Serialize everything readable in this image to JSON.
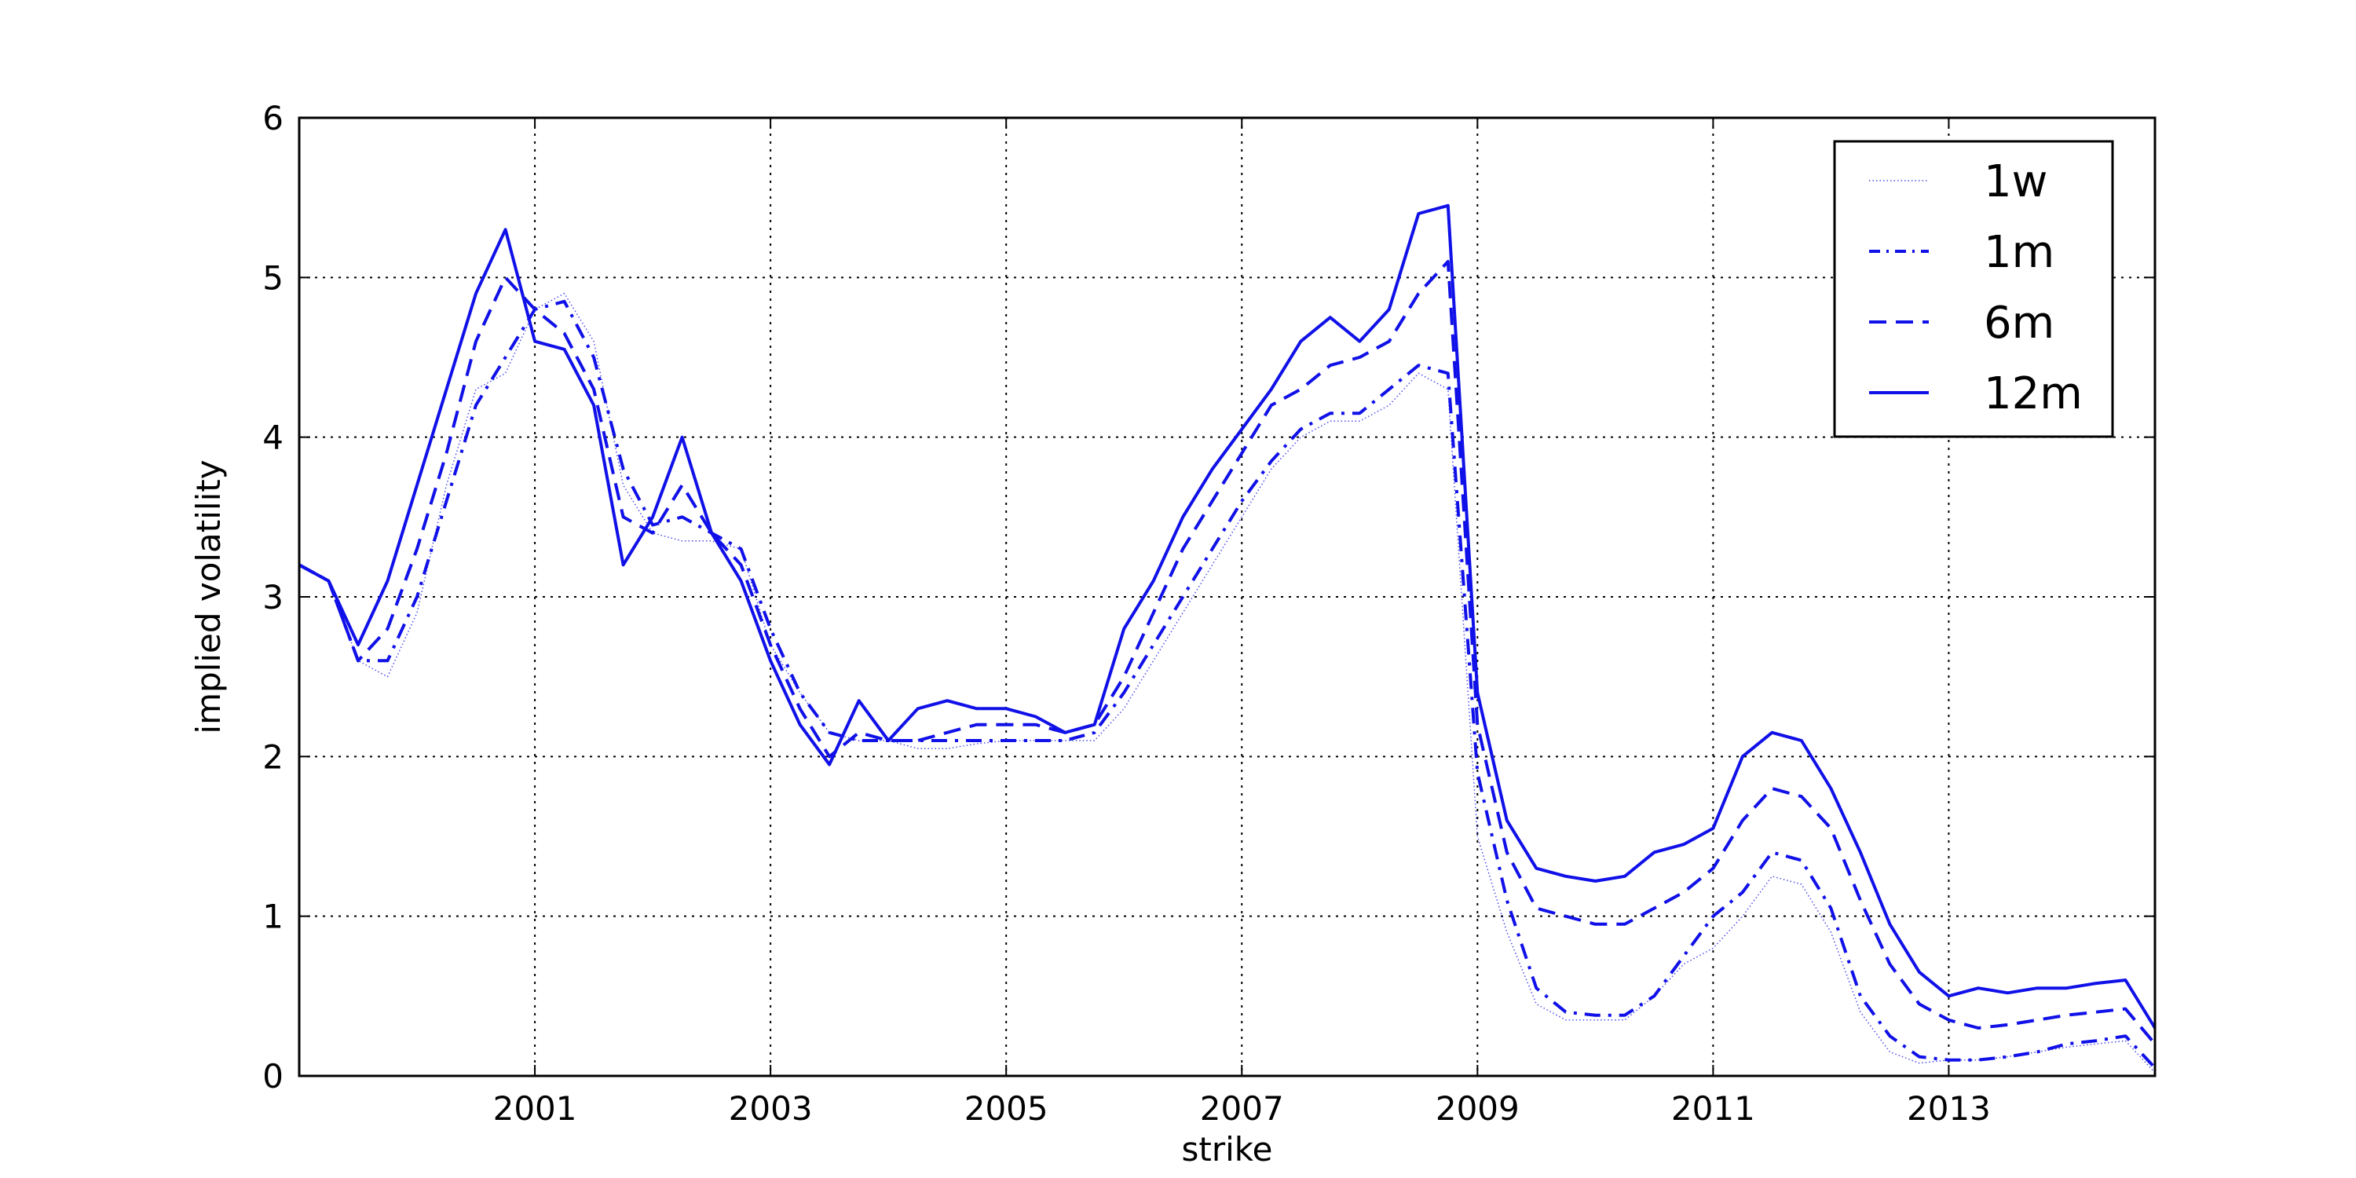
{
  "chart_data": {
    "type": "line",
    "title": "",
    "xlabel": "strike",
    "ylabel": "implied volatility",
    "xlim": [
      1999.0,
      2014.75
    ],
    "ylim": [
      0,
      6
    ],
    "x_ticks": [
      2001,
      2003,
      2005,
      2007,
      2009,
      2011,
      2013
    ],
    "x_tick_labels": [
      "2001",
      "2003",
      "2005",
      "2007",
      "2009",
      "2011",
      "2013"
    ],
    "y_ticks": [
      0,
      1,
      2,
      3,
      4,
      5,
      6
    ],
    "y_tick_labels": [
      "0",
      "1",
      "2",
      "3",
      "4",
      "5",
      "6"
    ],
    "grid": true,
    "legend_position": "top-right",
    "color": "#1010e8",
    "x": [
      1999.0,
      1999.25,
      1999.5,
      1999.75,
      2000.0,
      2000.25,
      2000.5,
      2000.75,
      2001.0,
      2001.25,
      2001.5,
      2001.75,
      2002.0,
      2002.25,
      2002.5,
      2002.75,
      2003.0,
      2003.25,
      2003.5,
      2003.75,
      2004.0,
      2004.25,
      2004.5,
      2004.75,
      2005.0,
      2005.25,
      2005.5,
      2005.75,
      2006.0,
      2006.25,
      2006.5,
      2006.75,
      2007.0,
      2007.25,
      2007.5,
      2007.75,
      2008.0,
      2008.25,
      2008.5,
      2008.75,
      2009.0,
      2009.25,
      2009.5,
      2009.75,
      2010.0,
      2010.25,
      2010.5,
      2010.75,
      2011.0,
      2011.25,
      2011.5,
      2011.75,
      2012.0,
      2012.25,
      2012.5,
      2012.75,
      2013.0,
      2013.25,
      2013.5,
      2013.75,
      2014.0,
      2014.25,
      2014.5,
      2014.75
    ],
    "series": [
      {
        "name": "1w",
        "style": "dotted",
        "values": [
          3.2,
          3.1,
          2.6,
          2.5,
          2.9,
          3.7,
          4.3,
          4.4,
          4.8,
          4.9,
          4.6,
          3.7,
          3.4,
          3.35,
          3.35,
          3.3,
          2.7,
          2.4,
          2.15,
          2.1,
          2.1,
          2.05,
          2.05,
          2.08,
          2.1,
          2.1,
          2.1,
          2.1,
          2.3,
          2.6,
          2.9,
          3.2,
          3.5,
          3.8,
          4.0,
          4.1,
          4.1,
          4.2,
          4.4,
          4.3,
          1.5,
          0.9,
          0.45,
          0.35,
          0.35,
          0.35,
          0.5,
          0.7,
          0.8,
          1.0,
          1.25,
          1.2,
          0.9,
          0.4,
          0.15,
          0.08,
          0.1,
          0.1,
          0.12,
          0.15,
          0.18,
          0.2,
          0.22,
          0.02
        ]
      },
      {
        "name": "1m",
        "style": "dashdot",
        "values": [
          3.2,
          3.1,
          2.6,
          2.6,
          3.0,
          3.6,
          4.2,
          4.5,
          4.8,
          4.85,
          4.5,
          3.8,
          3.45,
          3.5,
          3.4,
          3.3,
          2.8,
          2.4,
          2.15,
          2.1,
          2.1,
          2.1,
          2.1,
          2.1,
          2.1,
          2.1,
          2.1,
          2.15,
          2.4,
          2.7,
          3.0,
          3.3,
          3.6,
          3.85,
          4.05,
          4.15,
          4.15,
          4.3,
          4.45,
          4.4,
          1.9,
          1.1,
          0.55,
          0.4,
          0.38,
          0.38,
          0.5,
          0.75,
          1.0,
          1.15,
          1.4,
          1.35,
          1.05,
          0.5,
          0.25,
          0.12,
          0.1,
          0.1,
          0.12,
          0.15,
          0.2,
          0.22,
          0.25,
          0.05
        ]
      },
      {
        "name": "6m",
        "style": "dashed",
        "values": [
          3.2,
          3.1,
          2.6,
          2.8,
          3.3,
          3.9,
          4.6,
          5.0,
          4.8,
          4.65,
          4.3,
          3.5,
          3.4,
          3.7,
          3.4,
          3.2,
          2.7,
          2.3,
          2.0,
          2.15,
          2.1,
          2.1,
          2.15,
          2.2,
          2.2,
          2.2,
          2.15,
          2.2,
          2.5,
          2.9,
          3.3,
          3.6,
          3.9,
          4.2,
          4.3,
          4.45,
          4.5,
          4.6,
          4.9,
          5.1,
          2.2,
          1.4,
          1.05,
          1.0,
          0.95,
          0.95,
          1.05,
          1.15,
          1.3,
          1.6,
          1.8,
          1.75,
          1.55,
          1.1,
          0.7,
          0.45,
          0.35,
          0.3,
          0.32,
          0.35,
          0.38,
          0.4,
          0.42,
          0.2
        ]
      },
      {
        "name": "12m",
        "style": "solid",
        "values": [
          3.2,
          3.1,
          2.7,
          3.1,
          3.7,
          4.3,
          4.9,
          5.3,
          4.6,
          4.55,
          4.2,
          3.2,
          3.5,
          4.0,
          3.4,
          3.1,
          2.6,
          2.2,
          1.95,
          2.35,
          2.1,
          2.3,
          2.35,
          2.3,
          2.3,
          2.25,
          2.15,
          2.2,
          2.8,
          3.1,
          3.5,
          3.8,
          4.05,
          4.3,
          4.6,
          4.75,
          4.6,
          4.8,
          5.4,
          5.45,
          2.4,
          1.6,
          1.3,
          1.25,
          1.22,
          1.25,
          1.4,
          1.45,
          1.55,
          2.0,
          2.15,
          2.1,
          1.8,
          1.4,
          0.95,
          0.65,
          0.5,
          0.55,
          0.52,
          0.55,
          0.55,
          0.58,
          0.6,
          0.3
        ]
      }
    ]
  }
}
